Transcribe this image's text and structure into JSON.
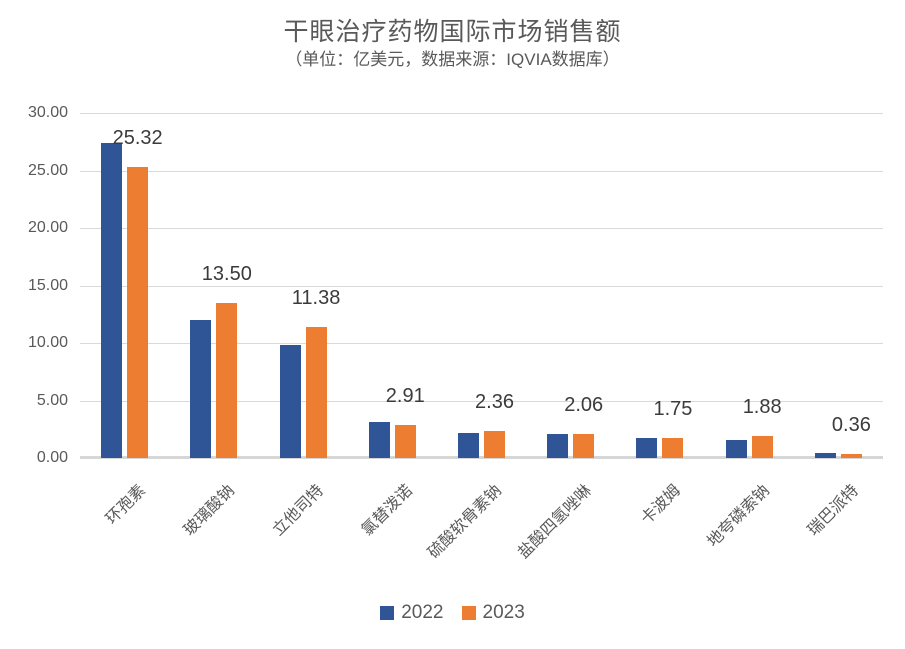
{
  "title": "干眼治疗药物国际市场销售额",
  "subtitle": "（单位：亿美元，数据来源：IQVIA数据库）",
  "colors": {
    "series_2022": "#2f5597",
    "series_2023": "#ed7d31",
    "title_text": "#595959",
    "axis_text": "#595959",
    "data_label_text": "#3b3b3b",
    "gridline": "#d9d9d9",
    "axis_line": "#d6d6d6",
    "background": "#ffffff"
  },
  "chart_data": {
    "type": "bar",
    "title": "干眼治疗药物国际市场销售额",
    "subtitle": "（单位：亿美元，数据来源：IQVIA数据库）",
    "categories": [
      "环孢素",
      "玻璃酸钠",
      "立他司特",
      "氯替泼诺",
      "硫酸软骨素钠",
      "盐酸四氢唑啉",
      "卡波姆",
      "地夸磷索钠",
      "瑞巴派特"
    ],
    "series": [
      {
        "name": "2022",
        "color": "#2f5597",
        "values": [
          27.4,
          12.0,
          9.8,
          3.15,
          2.2,
          2.1,
          1.7,
          1.55,
          0.45
        ],
        "show_data_labels": false
      },
      {
        "name": "2023",
        "color": "#ed7d31",
        "values": [
          25.32,
          13.5,
          11.38,
          2.91,
          2.36,
          2.06,
          1.75,
          1.88,
          0.36
        ],
        "show_data_labels": true
      }
    ],
    "data_labels_2023": [
      "25.32",
      "13.50",
      "11.38",
      "2.91",
      "2.36",
      "2.06",
      "1.75",
      "1.88",
      "0.36"
    ],
    "y_ticks": [
      "0.00",
      "5.00",
      "10.00",
      "15.00",
      "20.00",
      "25.00",
      "30.00"
    ],
    "y_tick_values": [
      0,
      5,
      10,
      15,
      20,
      25,
      30
    ],
    "ylim": [
      0,
      30
    ],
    "xlabel": "",
    "ylabel": "",
    "grid": true,
    "legend_position": "bottom",
    "legend_entries": [
      "2022",
      "2023"
    ]
  }
}
